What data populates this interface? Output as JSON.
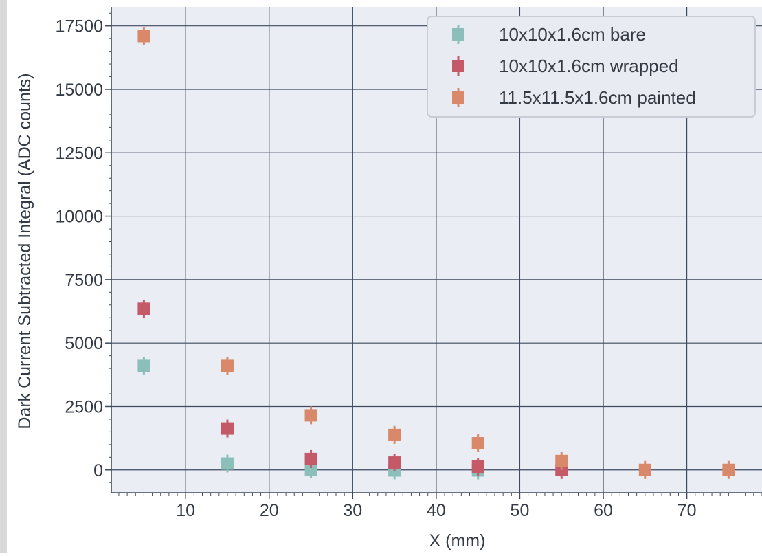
{
  "chart_data": {
    "type": "scatter",
    "title": "",
    "xlabel": "X (mm)",
    "ylabel": "Dark Current Subtracted Integral (ADC counts)",
    "xlim": [
      1.1,
      79
    ],
    "ylim": [
      -900,
      18250
    ],
    "xticks": [
      10,
      20,
      30,
      40,
      50,
      60,
      70
    ],
    "yticks": [
      0,
      2500,
      5000,
      7500,
      10000,
      12500,
      15000,
      17500
    ],
    "xtick_labels": [
      "10",
      "20",
      "30",
      "40",
      "50",
      "60",
      "70"
    ],
    "ytick_labels": [
      "0",
      "2500",
      "5000",
      "7500",
      "10000",
      "12500",
      "15000",
      "17500"
    ],
    "grid": true,
    "legend_position": "top-right",
    "marker": "square",
    "error_bars": "vertical",
    "series": [
      {
        "name": "10x10x1.6cm bare",
        "color": "#8dbfba",
        "x": [
          5,
          15,
          25,
          35,
          45
        ],
        "y": [
          4100,
          250,
          20,
          -20,
          -20
        ]
      },
      {
        "name": "10x10x1.6cm wrapped",
        "color": "#c45a68",
        "x": [
          5,
          15,
          25,
          35,
          45,
          55
        ],
        "y": [
          6350,
          1630,
          430,
          290,
          130,
          0
        ]
      },
      {
        "name": "11.5x11.5x1.6cm painted",
        "color": "#d9896a",
        "x": [
          5,
          15,
          25,
          35,
          45,
          55,
          65,
          75
        ],
        "y": [
          17100,
          4100,
          2150,
          1380,
          1050,
          350,
          0,
          0
        ]
      }
    ]
  },
  "colors": {
    "background": "#ffffff",
    "plot_background": "#eaedf3",
    "grid": "#3f4a60",
    "legend_background": "#e8ebf1",
    "legend_border": "#c7ccd6",
    "text": "#333a44",
    "left_strip": "#d8d8d8"
  }
}
